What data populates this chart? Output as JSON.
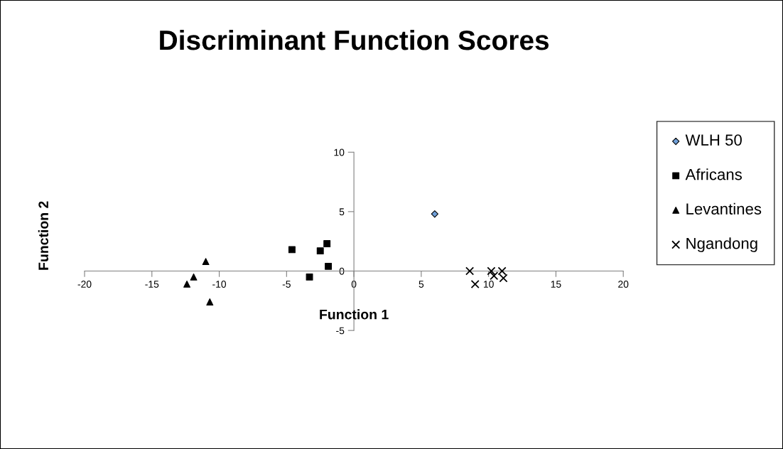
{
  "chart_data": {
    "type": "scatter",
    "title": "Discriminant Function Scores",
    "xlabel": "Function 1",
    "ylabel": "Function 2",
    "xlim": [
      -20,
      20
    ],
    "xticks": [
      -20,
      -15,
      -10,
      -5,
      0,
      5,
      10,
      15,
      20
    ],
    "ylim": [
      -5,
      10
    ],
    "yticks": [
      -5,
      0,
      5,
      10
    ],
    "grid": false,
    "legend": "right",
    "series": [
      {
        "name": "WLH 50",
        "color": "#6f9fd8",
        "marker": "diamond",
        "x": [
          6.0
        ],
        "values": [
          4.8
        ]
      },
      {
        "name": "Africans",
        "color": "#000000",
        "marker": "square",
        "x": [
          -4.6,
          -2.5,
          -2.0,
          -1.9,
          -3.3
        ],
        "values": [
          1.8,
          1.7,
          2.3,
          0.4,
          -0.5
        ]
      },
      {
        "name": "Levantines",
        "color": "#000000",
        "marker": "triangle",
        "x": [
          -11.0,
          -11.9,
          -12.4,
          -10.7
        ],
        "values": [
          0.8,
          -0.5,
          -1.1,
          -2.6
        ]
      },
      {
        "name": "Ngandong",
        "color": "#000000",
        "marker": "cross",
        "x": [
          8.6,
          9.0,
          10.2,
          10.4,
          11.0,
          11.1
        ],
        "values": [
          0.0,
          -1.1,
          0.0,
          -0.4,
          0.0,
          -0.6
        ]
      }
    ]
  }
}
